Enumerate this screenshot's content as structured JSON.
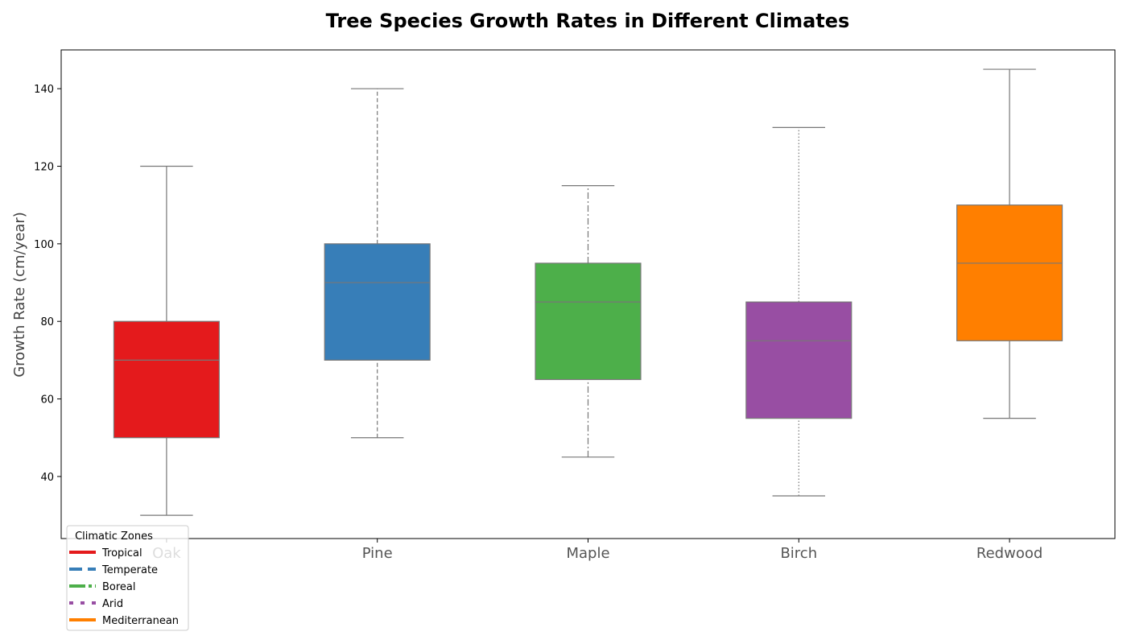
{
  "chart_data": {
    "type": "box",
    "title": "Tree Species Growth Rates in Different Climates",
    "xlabel": "",
    "ylabel": "Growth Rate (cm/year)",
    "ylim": [
      24,
      150
    ],
    "yticks": [
      40,
      60,
      80,
      100,
      120,
      140
    ],
    "grid": false,
    "categories": [
      "Oak",
      "Pine",
      "Maple",
      "Birch",
      "Redwood"
    ],
    "boxes": [
      {
        "category": "Oak",
        "min": 30,
        "q1": 50,
        "median": 70,
        "q3": 80,
        "max": 120,
        "color": "#e41a1c",
        "whisker_style": "solid"
      },
      {
        "category": "Pine",
        "min": 50,
        "q1": 70,
        "median": 90,
        "q3": 100,
        "max": 140,
        "color": "#377eb8",
        "whisker_style": "dashed"
      },
      {
        "category": "Maple",
        "min": 45,
        "q1": 65,
        "median": 85,
        "q3": 95,
        "max": 115,
        "color": "#4daf4a",
        "whisker_style": "dashdot"
      },
      {
        "category": "Birch",
        "min": 35,
        "q1": 55,
        "median": 75,
        "q3": 85,
        "max": 130,
        "color": "#984ea3",
        "whisker_style": "dotted"
      },
      {
        "category": "Redwood",
        "min": 55,
        "q1": 75,
        "median": 95,
        "q3": 110,
        "max": 145,
        "color": "#ff7f00",
        "whisker_style": "solid"
      }
    ],
    "legend": {
      "title": "Climatic Zones",
      "placement": "bottom-left",
      "entries": [
        {
          "label": "Tropical",
          "color": "#e41a1c",
          "style": "solid"
        },
        {
          "label": "Temperate",
          "color": "#377eb8",
          "style": "dashed"
        },
        {
          "label": "Boreal",
          "color": "#4daf4a",
          "style": "dashdot"
        },
        {
          "label": "Arid",
          "color": "#984ea3",
          "style": "dotted"
        },
        {
          "label": "Mediterranean",
          "color": "#ff7f00",
          "style": "solid"
        }
      ]
    }
  }
}
